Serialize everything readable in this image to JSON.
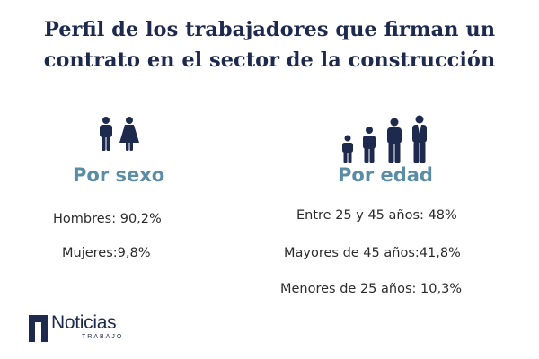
{
  "title": {
    "line1": "Perfil de los trabajadores que firman un",
    "line2": "contrato en el sector de la construcción"
  },
  "sexo": {
    "heading": "Por sexo",
    "icons": [
      "man-icon",
      "woman-icon"
    ],
    "stats": [
      "Hombres: 90,2%",
      "Mujeres:9,8%"
    ]
  },
  "edad": {
    "heading": "Por edad",
    "icons": [
      "child-icon",
      "boy-icon",
      "man-icon",
      "businessman-icon"
    ],
    "stats": [
      "Entre 25 y 45 años: 48%",
      "Mayores de 45 años:41,8%",
      "Menores de 25 años: 10,3%"
    ]
  },
  "logo": {
    "name": "Noticias",
    "subtitle": "TRABAJO"
  },
  "colors": {
    "title": "#1d2a4d",
    "heading": "#5a8ca3",
    "icon": "#1d2a4d"
  }
}
